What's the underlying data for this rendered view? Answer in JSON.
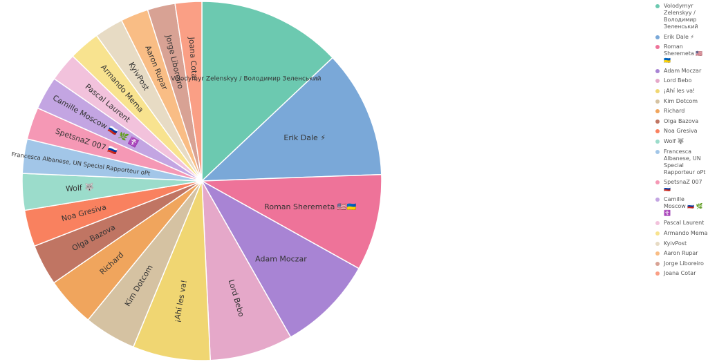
{
  "chart_data": {
    "type": "pie",
    "categories": [
      "Volodymyr Zelenskyy / Володимир Зеленський",
      "Erik Dale ⚡",
      "Roman Sheremeta 🇺🇸🇺🇦",
      "Adam Moczar",
      "Lord Bebo",
      "¡Ahí les va!",
      "Kim Dotcom",
      "Richard",
      "Olga Bazova",
      "Noa Gresiva",
      "Wolf 🐺",
      "Francesca Albanese, UN Special Rapporteur oPt",
      "SpetsnaZ 007 🇷🇺",
      "Camille Moscow 🇷🇺 🌿 ☦️",
      "Pascal Laurent",
      "Armando Mema",
      "KyivPost",
      "Aaron Rupar",
      "Jorge Liboreiro",
      "Joana Cotar"
    ],
    "values": [
      13.0,
      11.5,
      8.7,
      8.7,
      7.5,
      7.0,
      4.7,
      4.5,
      3.7,
      3.3,
      3.3,
      3.1,
      2.9,
      3.0,
      2.6,
      2.8,
      2.6,
      2.5,
      2.5,
      2.4
    ],
    "colors": [
      "#6cc9b0",
      "#7aa8d8",
      "#ee7399",
      "#a884d4",
      "#e5a8c9",
      "#f0d672",
      "#d5c2a2",
      "#f0a55d",
      "#c07563",
      "#f9815f",
      "#9bdccb",
      "#a2c6e8",
      "#f598b5",
      "#c3a5e2",
      "#f2c2dc",
      "#f8e38f",
      "#e7dbc4",
      "#f9bd85",
      "#d8a294",
      "#fa9f85"
    ],
    "legend": "right"
  }
}
